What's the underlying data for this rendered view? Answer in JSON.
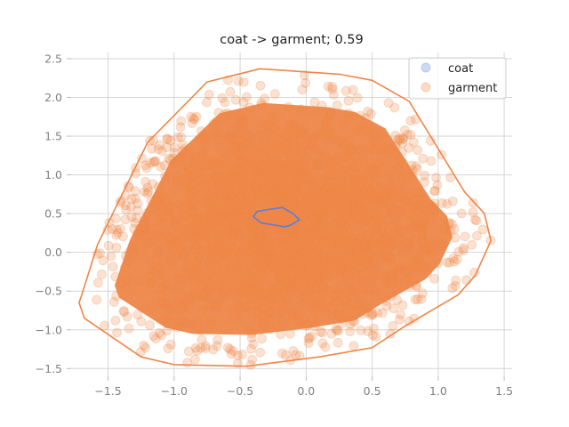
{
  "chart_data": {
    "type": "scatter",
    "title": "coat -> garment; 0.59",
    "xlabel": "",
    "ylabel": "",
    "xlim": [
      -1.78,
      1.56
    ],
    "ylim": [
      -1.6,
      2.58
    ],
    "x_ticks": [
      -1.5,
      -1.0,
      -0.5,
      0.0,
      0.5,
      1.0,
      1.5
    ],
    "x_tick_labels": [
      "−1.5",
      "−1.0",
      "−0.5",
      "0.0",
      "0.5",
      "1.0",
      "1.5"
    ],
    "y_ticks": [
      -1.5,
      -1.0,
      -0.5,
      0.0,
      0.5,
      1.0,
      1.5,
      2.0,
      2.5
    ],
    "y_tick_labels": [
      "−1.5",
      "−1.0",
      "−0.5",
      "0.0",
      "0.5",
      "1.0",
      "1.5",
      "2.0",
      "2.5"
    ],
    "grid": true,
    "legend_position": "top-right",
    "series": [
      {
        "name": "coat",
        "color": "#5b7fd6",
        "point_alpha": 0.25,
        "hull": [
          [
            -0.37,
            0.53
          ],
          [
            -0.18,
            0.58
          ],
          [
            -0.1,
            0.5
          ],
          [
            -0.05,
            0.42
          ],
          [
            -0.12,
            0.35
          ],
          [
            -0.16,
            0.33
          ],
          [
            -0.34,
            0.38
          ],
          [
            -0.4,
            0.46
          ]
        ]
      },
      {
        "name": "garment",
        "color": "#ee8649",
        "point_alpha": 0.25,
        "hull": [
          [
            -0.75,
            2.2
          ],
          [
            -0.35,
            2.37
          ],
          [
            0.25,
            2.3
          ],
          [
            0.5,
            2.22
          ],
          [
            0.78,
            1.95
          ],
          [
            1.2,
            0.78
          ],
          [
            1.35,
            0.5
          ],
          [
            1.4,
            0.15
          ],
          [
            1.28,
            -0.3
          ],
          [
            1.15,
            -0.55
          ],
          [
            0.75,
            -0.95
          ],
          [
            0.5,
            -1.23
          ],
          [
            0.1,
            -1.35
          ],
          [
            -0.45,
            -1.47
          ],
          [
            -1.0,
            -1.45
          ],
          [
            -1.25,
            -1.35
          ],
          [
            -1.68,
            -0.85
          ],
          [
            -1.72,
            -0.65
          ],
          [
            -1.7,
            -0.55
          ],
          [
            -1.58,
            0.1
          ],
          [
            -1.2,
            1.42
          ]
        ]
      }
    ]
  }
}
